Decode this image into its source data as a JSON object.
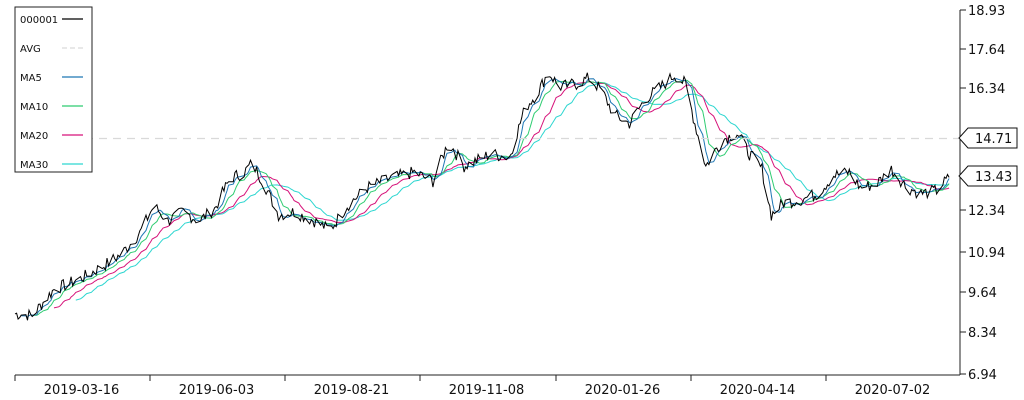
{
  "chart_data": {
    "type": "line",
    "symbol": "000001",
    "x_ticks": [
      "2019-03-16",
      "2019-06-03",
      "2019-08-21",
      "2019-11-08",
      "2020-01-26",
      "2020-04-14",
      "2020-07-02"
    ],
    "y_ticks": [
      "18.93",
      "17.64",
      "16.34",
      "14.71",
      "13.43",
      "12.34",
      "10.94",
      "9.64",
      "8.34",
      "6.94"
    ],
    "ylim": [
      6.94,
      18.93
    ],
    "avg_value": 14.71,
    "avg_label": "14.71",
    "last_value": 13.43,
    "last_label": "13.43",
    "grid": false,
    "legend_position": "top-left",
    "series_colors": {
      "000001": "#000000",
      "AVG": "#d9d9d9",
      "MA5": "#1f77b4",
      "MA10": "#2ecc71",
      "MA20": "#d6137a",
      "MA30": "#2dd6d0"
    },
    "legend": [
      {
        "key": "000001",
        "label": "000001"
      },
      {
        "key": "AVG",
        "label": "AVG"
      },
      {
        "key": "MA5",
        "label": "MA5"
      },
      {
        "key": "MA10",
        "label": "MA10"
      },
      {
        "key": "MA20",
        "label": "MA20"
      },
      {
        "key": "MA30",
        "label": "MA30"
      }
    ],
    "price_anchors": [
      [
        "2019-01-07",
        8.95
      ],
      [
        "2019-01-18",
        8.9
      ],
      [
        "2019-02-01",
        9.75
      ],
      [
        "2019-02-18",
        10.1
      ],
      [
        "2019-03-04",
        10.5
      ],
      [
        "2019-03-16",
        10.9
      ],
      [
        "2019-03-28",
        11.6
      ],
      [
        "2019-04-06",
        12.5
      ],
      [
        "2019-04-15",
        12.0
      ],
      [
        "2019-04-25",
        12.3
      ],
      [
        "2019-05-05",
        12.0
      ],
      [
        "2019-05-15",
        12.4
      ],
      [
        "2019-05-25",
        13.4
      ],
      [
        "2019-06-03",
        13.6
      ],
      [
        "2019-06-08",
        13.9
      ],
      [
        "2019-06-15",
        13.3
      ],
      [
        "2019-06-25",
        12.2
      ],
      [
        "2019-07-05",
        12.3
      ],
      [
        "2019-07-18",
        12.0
      ],
      [
        "2019-07-28",
        11.7
      ],
      [
        "2019-08-08",
        12.5
      ],
      [
        "2019-08-21",
        13.1
      ],
      [
        "2019-09-05",
        13.4
      ],
      [
        "2019-09-20",
        13.6
      ],
      [
        "2019-10-02",
        13.3
      ],
      [
        "2019-10-12",
        14.6
      ],
      [
        "2019-10-22",
        13.8
      ],
      [
        "2019-11-08",
        14.2
      ],
      [
        "2019-11-20",
        14.1
      ],
      [
        "2019-11-30",
        15.7
      ],
      [
        "2019-12-08",
        16.2
      ],
      [
        "2019-12-15",
        16.9
      ],
      [
        "2019-12-22",
        16.4
      ],
      [
        "2020-01-02",
        16.5
      ],
      [
        "2020-01-10",
        16.7
      ],
      [
        "2020-01-18",
        16.3
      ],
      [
        "2020-01-26",
        15.5
      ],
      [
        "2020-02-05",
        15.2
      ],
      [
        "2020-02-15",
        16.0
      ],
      [
        "2020-02-25",
        16.4
      ],
      [
        "2020-03-05",
        16.8
      ],
      [
        "2020-03-12",
        16.5
      ],
      [
        "2020-03-18",
        15.2
      ],
      [
        "2020-03-25",
        13.8
      ],
      [
        "2020-04-01",
        14.4
      ],
      [
        "2020-04-06",
        14.7
      ],
      [
        "2020-04-14",
        14.9
      ],
      [
        "2020-04-22",
        14.2
      ],
      [
        "2020-04-30",
        13.7
      ],
      [
        "2020-05-06",
        12.2
      ],
      [
        "2020-05-14",
        12.6
      ],
      [
        "2020-05-25",
        12.7
      ],
      [
        "2020-06-05",
        12.9
      ],
      [
        "2020-06-15",
        13.5
      ],
      [
        "2020-06-25",
        13.6
      ],
      [
        "2020-07-02",
        13.1
      ],
      [
        "2020-07-12",
        13.2
      ],
      [
        "2020-07-22",
        13.7
      ],
      [
        "2020-08-01",
        13.1
      ],
      [
        "2020-08-10",
        12.9
      ],
      [
        "2020-08-20",
        13.0
      ],
      [
        "2020-08-28",
        13.43
      ]
    ]
  }
}
